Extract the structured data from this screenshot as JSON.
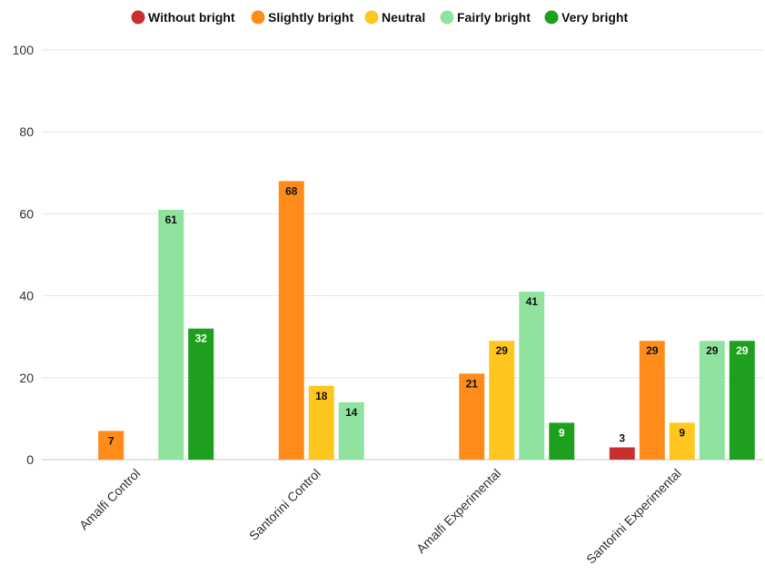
{
  "chart_data": {
    "type": "bar",
    "title": "",
    "xlabel": "",
    "ylabel": "",
    "ylim": [
      0,
      100
    ],
    "yticks": [
      0,
      20,
      40,
      60,
      80,
      100
    ],
    "grid": true,
    "legend_position": "top-center",
    "categories": [
      "Amalfi Control",
      "Santorini Control",
      "Amalfi Experimental",
      "Santorini Experimental"
    ],
    "series": [
      {
        "name": "Without bright",
        "color": "#c8302e",
        "label_color": "#111111",
        "values": [
          null,
          null,
          null,
          3
        ]
      },
      {
        "name": "Slightly bright",
        "color": "#ff8c1a",
        "label_color": "#111111",
        "values": [
          7,
          68,
          21,
          29
        ]
      },
      {
        "name": "Neutral",
        "color": "#ffc61f",
        "label_color": "#111111",
        "values": [
          null,
          18,
          29,
          9
        ]
      },
      {
        "name": "Fairly bright",
        "color": "#90e39e",
        "label_color": "#111111",
        "values": [
          61,
          14,
          41,
          29
        ]
      },
      {
        "name": "Very bright",
        "color": "#1ea01e",
        "label_color": "#ffffff",
        "values": [
          32,
          null,
          9,
          29
        ]
      }
    ]
  }
}
